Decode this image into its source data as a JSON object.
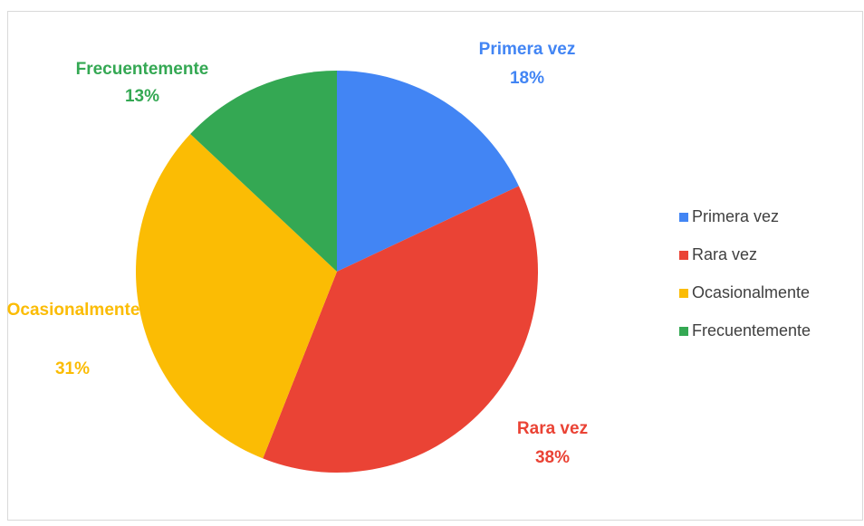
{
  "chart_data": {
    "type": "pie",
    "categories": [
      "Primera vez",
      "Rara vez",
      "Ocasionalmente",
      "Frecuentemente"
    ],
    "values": [
      18,
      38,
      31,
      13
    ],
    "value_labels": [
      "18%",
      "38%",
      "31%",
      "13%"
    ],
    "colors": [
      "#4285f4",
      "#ea4335",
      "#fbbc04",
      "#34a853"
    ],
    "legend": "right"
  }
}
